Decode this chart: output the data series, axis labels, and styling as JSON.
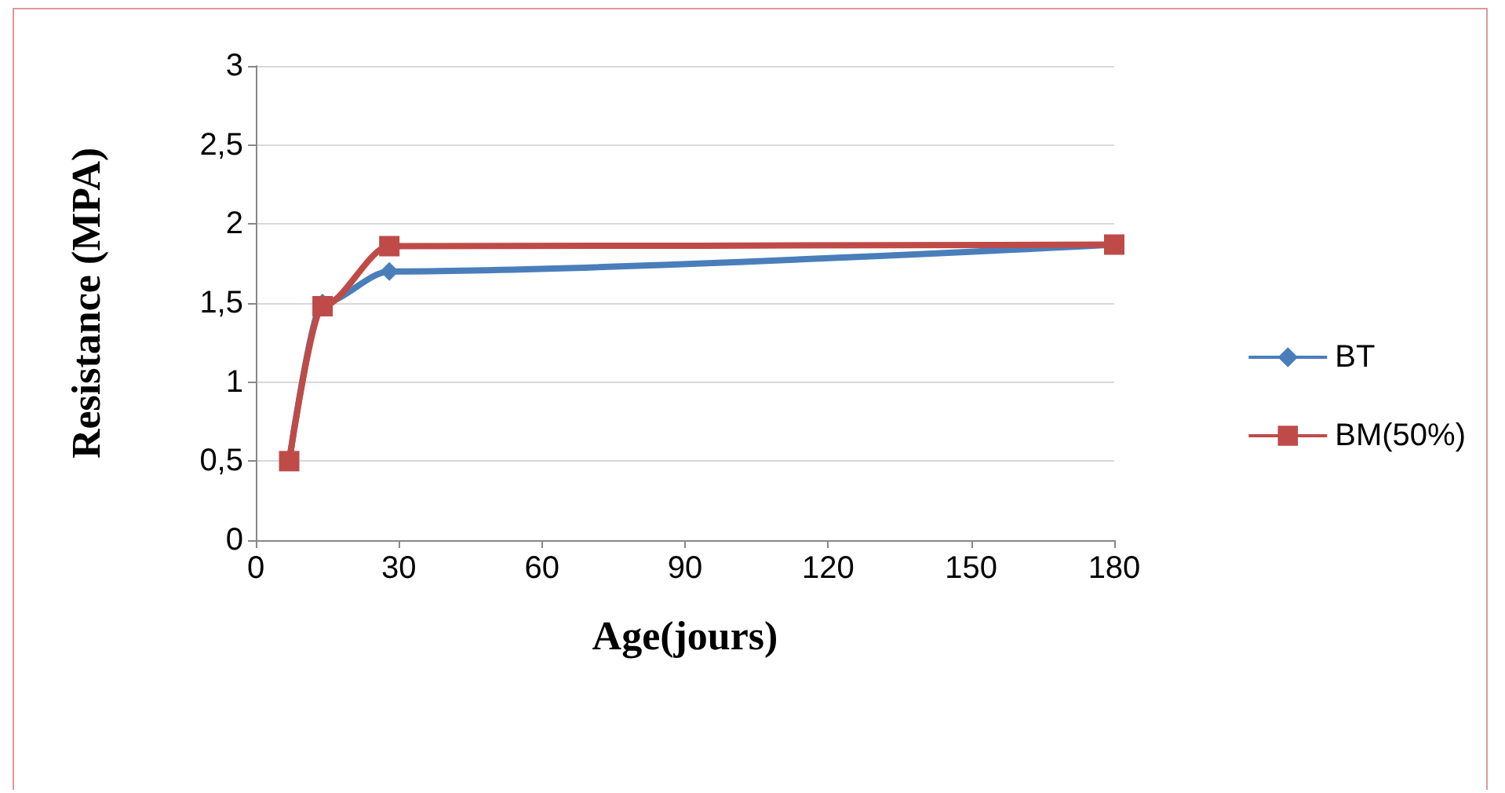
{
  "chart_data": {
    "type": "line",
    "xlabel": "Age(jours)",
    "ylabel": "Resistance (MPA)",
    "series": [
      {
        "name": "BT",
        "color": "#4a7ebb",
        "marker": "diamond",
        "x": [
          7,
          14,
          28,
          180
        ],
        "values": [
          0.5,
          1.5,
          1.7,
          1.87
        ]
      },
      {
        "name": "BM(50%)",
        "color": "#be4b48",
        "marker": "square",
        "x": [
          7,
          14,
          28,
          180
        ],
        "values": [
          0.5,
          1.48,
          1.86,
          1.87
        ]
      }
    ],
    "xlim": [
      0,
      180
    ],
    "xticks": [
      0,
      30,
      60,
      90,
      120,
      150,
      180
    ],
    "ylim": [
      0,
      3
    ],
    "yticks": [
      0,
      {
        "value": 0.5,
        "label": "0,5"
      },
      1,
      {
        "value": 1.5,
        "label": "1,5"
      },
      2,
      {
        "value": 2.5,
        "label": "2,5"
      },
      3
    ],
    "grid": "y",
    "legend": "right"
  }
}
